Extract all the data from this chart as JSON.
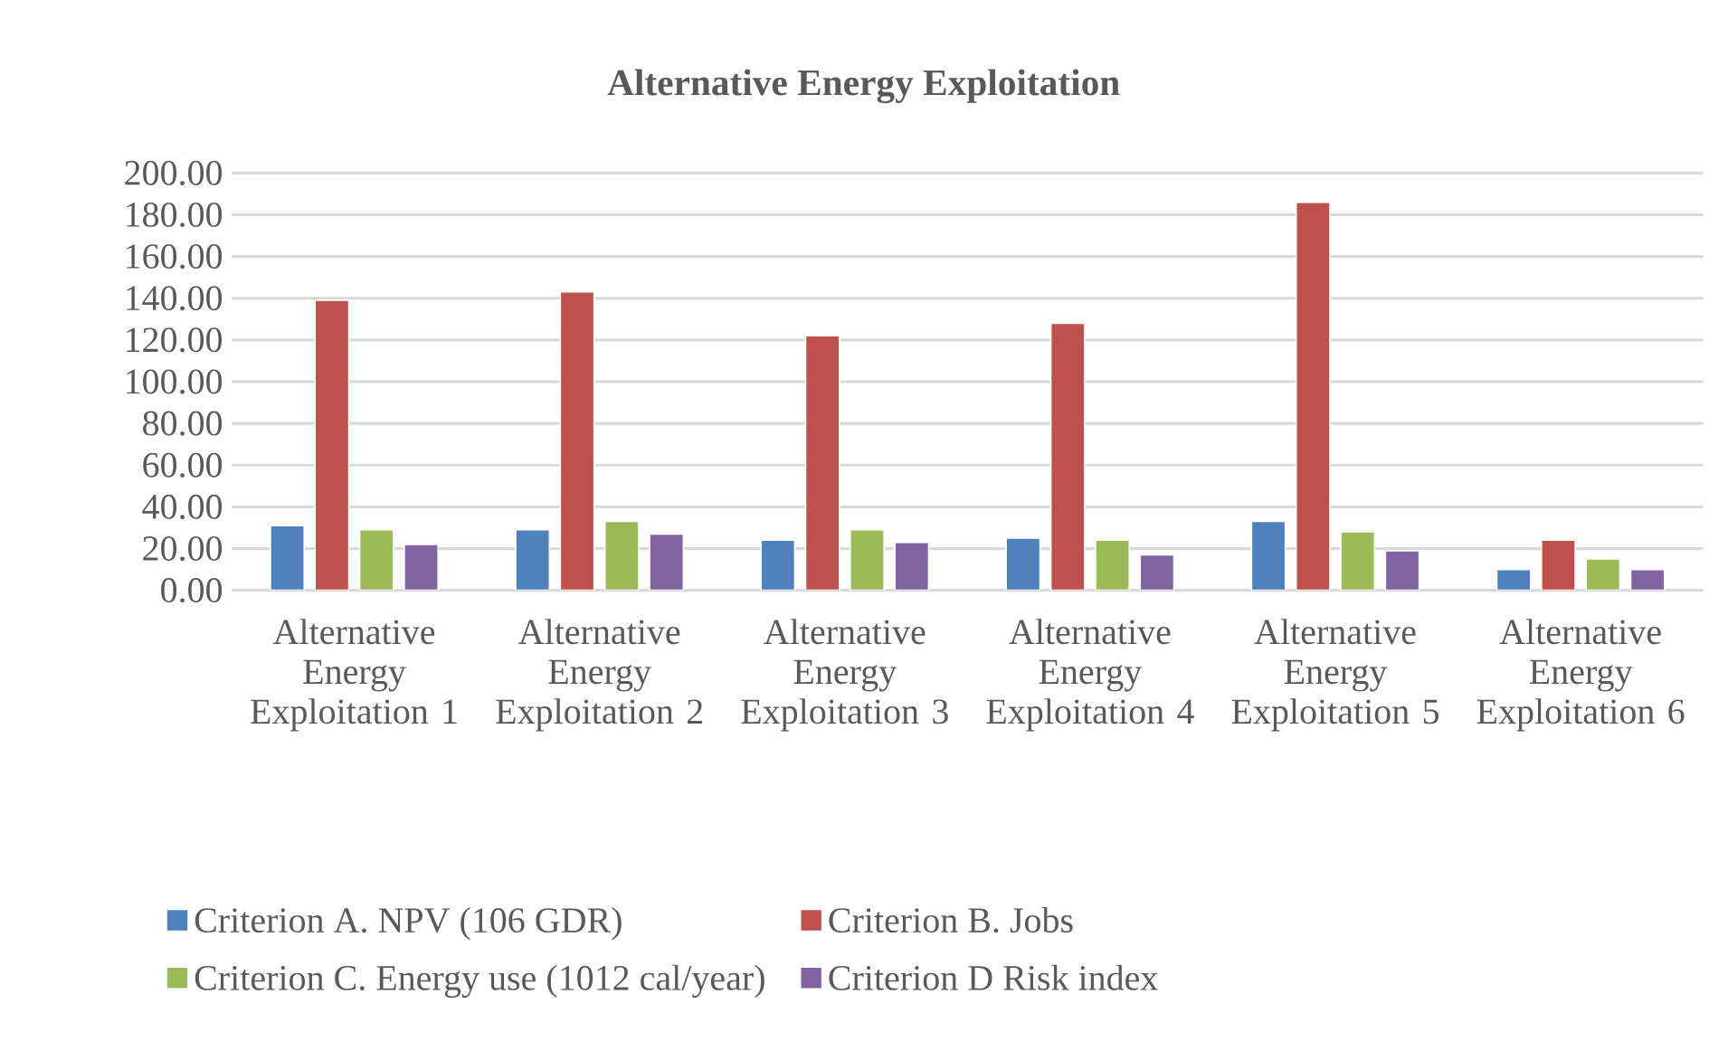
{
  "chart_data": {
    "type": "bar",
    "title": "Alternative Energy Exploitation",
    "categories": [
      "Alternative Energy Exploitation 1",
      "Alternative Energy Exploitation 2",
      "Alternative Energy Exploitation 3",
      "Alternative Energy Exploitation 4",
      "Alternative Energy Exploitation 5",
      "Alternative Energy Exploitation 6"
    ],
    "series": [
      {
        "name": "Criterion A. NPV (106 GDR)",
        "color": "#4f81bd",
        "values": [
          31,
          29,
          24,
          25,
          33,
          10
        ]
      },
      {
        "name": "Criterion B. Jobs",
        "color": "#c0504d",
        "values": [
          139,
          143,
          122,
          128,
          186,
          24
        ]
      },
      {
        "name": "Criterion C. Energy use (1012 cal/year)",
        "color": "#9bbb59",
        "values": [
          29,
          33,
          29,
          24,
          28,
          15
        ]
      },
      {
        "name": "Criterion D Risk index",
        "color": "#8064a2",
        "values": [
          22,
          27,
          23,
          17,
          19,
          10
        ]
      }
    ],
    "ylim": [
      0,
      200
    ],
    "yticks": [
      {
        "value": 0,
        "label": "0.00"
      },
      {
        "value": 20,
        "label": "20.00"
      },
      {
        "value": 40,
        "label": "40.00"
      },
      {
        "value": 60,
        "label": "60.00"
      },
      {
        "value": 80,
        "label": "80.00"
      },
      {
        "value": 100,
        "label": "100.00"
      },
      {
        "value": 120,
        "label": "120.00"
      },
      {
        "value": 140,
        "label": "140.00"
      },
      {
        "value": 160,
        "label": "160.00"
      },
      {
        "value": 180,
        "label": "180.00"
      },
      {
        "value": 200,
        "label": "200.00"
      }
    ],
    "grid": "y",
    "legend": "bottom"
  }
}
